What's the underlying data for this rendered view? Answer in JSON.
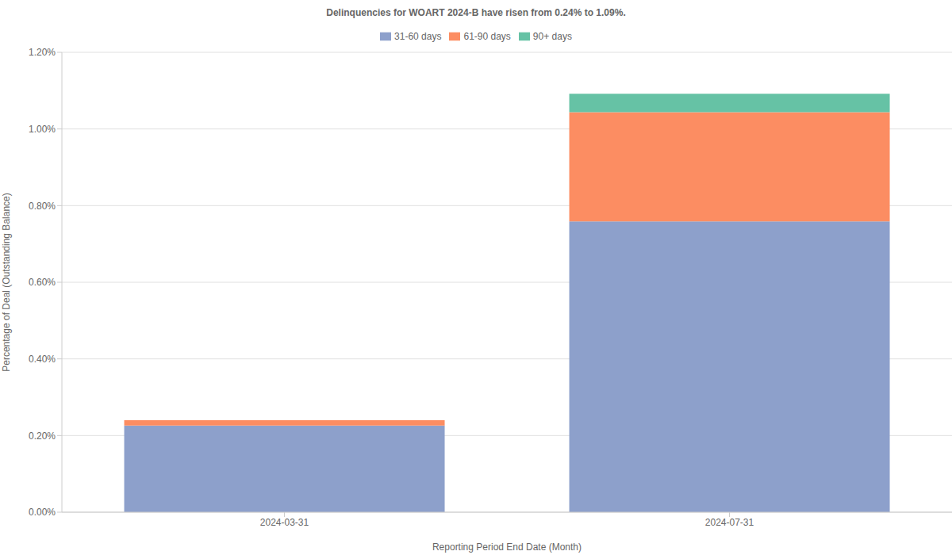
{
  "chart_data": {
    "type": "bar",
    "title": "Delinquencies for WOART 2024-B have risen from 0.24% to 1.09%.",
    "x_label": "Reporting Period End Date (Month)",
    "y_label": "Percentage of Deal (Outstanding Balance)",
    "categories": [
      "2024-03-31",
      "2024-07-31"
    ],
    "series": [
      {
        "name": "31-60 days",
        "color": "#8da0cb",
        "values": [
          0.226,
          0.759
        ]
      },
      {
        "name": "61-90 days",
        "color": "#fc8d62",
        "values": [
          0.014,
          0.285
        ]
      },
      {
        "name": "90+ days",
        "color": "#66c2a5",
        "values": [
          0,
          0.048
        ]
      }
    ],
    "stacked": true,
    "ylim": [
      0,
      1.2
    ],
    "yticks": [
      {
        "value": 0,
        "label": "0.00%"
      },
      {
        "value": 0.2,
        "label": "0.20%"
      },
      {
        "value": 0.4,
        "label": "0.40%"
      },
      {
        "value": 0.6,
        "label": "0.60%"
      },
      {
        "value": 0.8,
        "label": "0.80%"
      },
      {
        "value": 1.0,
        "label": "1.00%"
      },
      {
        "value": 1.2,
        "label": "1.20%"
      }
    ],
    "grid": true,
    "legend": "top"
  }
}
